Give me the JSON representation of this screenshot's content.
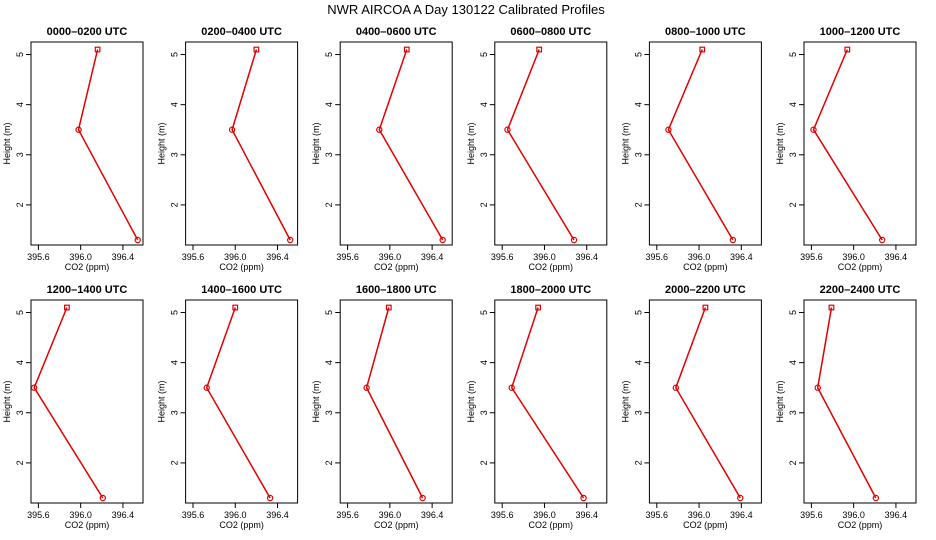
{
  "colors": {
    "line": "#e00000",
    "frame": "#000000",
    "background": "#ffffff"
  },
  "chart_data": {
    "type": "line",
    "title": "NWR AIRCOA A  Day 130122  Calibrated Profiles",
    "xlabel": "CO2 (ppm)",
    "ylabel": "Height (m)",
    "grid": false,
    "y_ticks": [
      2,
      3,
      4,
      5
    ],
    "y_tick_labels": [
      "2",
      "3",
      "4",
      "5"
    ],
    "ylim": [
      1.2,
      5.25
    ],
    "heights": [
      1.3,
      3.5,
      5.1
    ],
    "panels": [
      {
        "title": "0000–0200 UTC",
        "xlim": [
          395.53,
          396.59
        ],
        "x_ticks": [
          395.6,
          396.0,
          396.4
        ],
        "x_tick_labels": [
          "395.6",
          "396.0",
          "396.4"
        ],
        "co2": [
          396.54,
          395.98,
          396.16
        ]
      },
      {
        "title": "0200–0400 UTC",
        "xlim": [
          395.53,
          396.59
        ],
        "x_ticks": [
          395.6,
          396.0,
          396.4
        ],
        "x_tick_labels": [
          "395.6",
          "396.0",
          "396.4"
        ],
        "co2": [
          396.52,
          395.97,
          396.2
        ]
      },
      {
        "title": "0400–0600 UTC",
        "xlim": [
          395.53,
          396.59
        ],
        "x_ticks": [
          395.6,
          396.0,
          396.4
        ],
        "x_tick_labels": [
          "395.6",
          "396.0",
          "396.4"
        ],
        "co2": [
          396.5,
          395.9,
          396.16
        ]
      },
      {
        "title": "0600–0800 UTC",
        "xlim": [
          395.53,
          396.59
        ],
        "x_ticks": [
          395.6,
          396.0,
          396.4
        ],
        "x_tick_labels": [
          "395.6",
          "396.0",
          "396.4"
        ],
        "co2": [
          396.28,
          395.65,
          395.95
        ]
      },
      {
        "title": "0800–1000 UTC",
        "xlim": [
          395.53,
          396.59
        ],
        "x_ticks": [
          395.6,
          396.0,
          396.4
        ],
        "x_tick_labels": [
          "395.6",
          "396.0",
          "396.4"
        ],
        "co2": [
          396.32,
          395.71,
          396.03
        ]
      },
      {
        "title": "1000–1200 UTC",
        "xlim": [
          395.53,
          396.59
        ],
        "x_ticks": [
          395.6,
          396.0,
          396.4
        ],
        "x_tick_labels": [
          "395.6",
          "396.0",
          "396.4"
        ],
        "co2": [
          396.27,
          395.62,
          395.94
        ]
      },
      {
        "title": "1200–1400 UTC",
        "xlim": [
          395.53,
          396.59
        ],
        "x_ticks": [
          395.6,
          396.0,
          396.4
        ],
        "x_tick_labels": [
          "395.6",
          "396.0",
          "396.4"
        ],
        "co2": [
          396.21,
          395.56,
          395.87
        ]
      },
      {
        "title": "1400–1600 UTC",
        "xlim": [
          395.53,
          396.59
        ],
        "x_ticks": [
          395.6,
          396.0,
          396.4
        ],
        "x_tick_labels": [
          "395.6",
          "396.0",
          "396.4"
        ],
        "co2": [
          396.33,
          395.73,
          396.0
        ]
      },
      {
        "title": "1600–1800 UTC",
        "xlim": [
          395.53,
          396.59
        ],
        "x_ticks": [
          395.6,
          396.0,
          396.4
        ],
        "x_tick_labels": [
          "395.6",
          "396.0",
          "396.4"
        ],
        "co2": [
          396.31,
          395.78,
          395.99
        ]
      },
      {
        "title": "1800–2000 UTC",
        "xlim": [
          395.53,
          396.59
        ],
        "x_ticks": [
          395.6,
          396.0,
          396.4
        ],
        "x_tick_labels": [
          "395.6",
          "396.0",
          "396.4"
        ],
        "co2": [
          396.37,
          395.69,
          395.94
        ]
      },
      {
        "title": "2000–2200 UTC",
        "xlim": [
          395.53,
          396.59
        ],
        "x_ticks": [
          395.6,
          396.0,
          396.4
        ],
        "x_tick_labels": [
          "395.6",
          "396.0",
          "396.4"
        ],
        "co2": [
          396.39,
          395.78,
          396.06
        ]
      },
      {
        "title": "2200–2400 UTC",
        "xlim": [
          395.53,
          396.59
        ],
        "x_ticks": [
          395.6,
          396.0,
          396.4
        ],
        "x_tick_labels": [
          "395.6",
          "396.0",
          "396.4"
        ],
        "co2": [
          396.21,
          395.66,
          395.79
        ]
      }
    ]
  }
}
